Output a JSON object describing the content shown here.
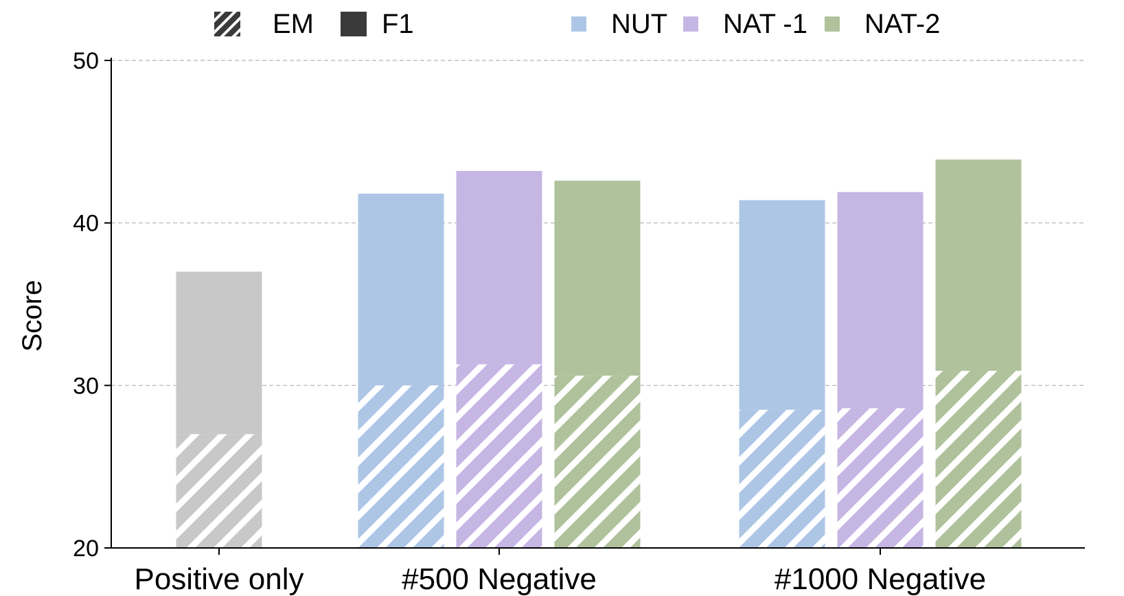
{
  "chart_data": {
    "type": "bar",
    "ylabel": "Score",
    "ylim": [
      20,
      50
    ],
    "yticks": [
      "20",
      "30",
      "40",
      "50"
    ],
    "grid": "horizontal-dashed",
    "categories": [
      "Positive only",
      "#500 Negative",
      "#1000 Negative"
    ],
    "metric_legend": [
      {
        "name": "EM",
        "style": "hatched"
      },
      {
        "name": "F1",
        "style": "solid"
      }
    ],
    "series": [
      {
        "name": "",
        "color": "#c8c8c8",
        "group": 0,
        "em": 27.0,
        "f1": 37.0
      },
      {
        "name": "NUT",
        "color": "#adc6e5",
        "group": 1,
        "em": 30.0,
        "f1": 41.8
      },
      {
        "name": "NAT -1",
        "color": "#c6b6e3",
        "group": 1,
        "em": 31.3,
        "f1": 43.2
      },
      {
        "name": "NAT-2",
        "color": "#b0c29c",
        "group": 1,
        "em": 30.6,
        "f1": 42.6
      },
      {
        "name": "NUT",
        "color": "#adc6e5",
        "group": 2,
        "em": 28.5,
        "f1": 41.4
      },
      {
        "name": "NAT -1",
        "color": "#c6b6e3",
        "group": 2,
        "em": 28.6,
        "f1": 41.9
      },
      {
        "name": "NAT-2",
        "color": "#b0c29c",
        "group": 2,
        "em": 30.9,
        "f1": 43.9
      }
    ],
    "color_legend": [
      {
        "name": "NUT",
        "color": "#adc6e5"
      },
      {
        "name": "NAT -1",
        "color": "#c6b6e3"
      },
      {
        "name": "NAT-2",
        "color": "#b0c29c"
      }
    ],
    "legend_position": "top"
  }
}
